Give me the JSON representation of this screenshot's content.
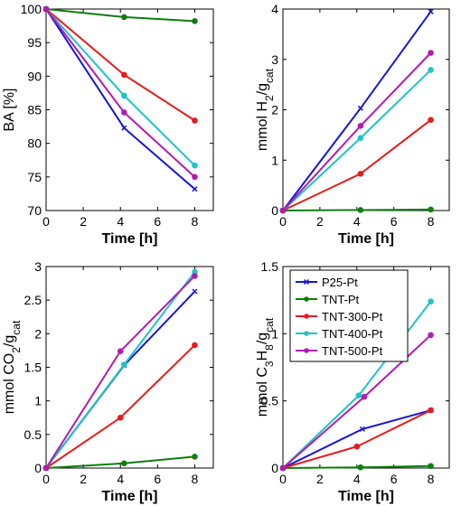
{
  "chart_data": [
    {
      "type": "line",
      "xlabel": "Time [h]",
      "ylabel": "BA [%]",
      "xlim": [
        0,
        9
      ],
      "ylim": [
        70,
        100
      ],
      "xticks": [
        "0",
        "2",
        "4",
        "6",
        "8"
      ],
      "yticks": [
        "70",
        "75",
        "80",
        "85",
        "90",
        "95",
        "100"
      ],
      "series": [
        {
          "name": "P25-Pt",
          "x": [
            0,
            4.2,
            8
          ],
          "y": [
            100,
            82.3,
            73.2
          ]
        },
        {
          "name": "TNT-Pt",
          "x": [
            0,
            4.2,
            8
          ],
          "y": [
            100,
            98.8,
            98.2
          ]
        },
        {
          "name": "TNT-300-Pt",
          "x": [
            0,
            4.2,
            8
          ],
          "y": [
            100,
            90.2,
            83.4
          ]
        },
        {
          "name": "TNT-400-Pt",
          "x": [
            0,
            4.2,
            8
          ],
          "y": [
            100,
            87.1,
            76.7
          ]
        },
        {
          "name": "TNT-500-Pt",
          "x": [
            0,
            4.2,
            8
          ],
          "y": [
            100,
            84.6,
            75
          ]
        }
      ]
    },
    {
      "type": "line",
      "xlabel": "Time [h]",
      "ylabel": "mmol H2/gcat",
      "ylabel_parts": [
        "mmol H",
        "2",
        "/g",
        "cat"
      ],
      "xlim": [
        0,
        9
      ],
      "ylim": [
        0,
        4
      ],
      "xticks": [
        "0",
        "2",
        "4",
        "6",
        "8"
      ],
      "yticks": [
        "0",
        "1",
        "2",
        "3",
        "4"
      ],
      "series": [
        {
          "name": "P25-Pt",
          "x": [
            0,
            4.2,
            8
          ],
          "y": [
            0,
            2.03,
            3.95
          ]
        },
        {
          "name": "TNT-Pt",
          "x": [
            0,
            4.2,
            8
          ],
          "y": [
            0,
            0.01,
            0.02
          ]
        },
        {
          "name": "TNT-300-Pt",
          "x": [
            0,
            4.2,
            8
          ],
          "y": [
            0,
            0.73,
            1.8
          ]
        },
        {
          "name": "TNT-400-Pt",
          "x": [
            0,
            4.2,
            8
          ],
          "y": [
            0,
            1.44,
            2.79
          ]
        },
        {
          "name": "TNT-500-Pt",
          "x": [
            0,
            4.2,
            8
          ],
          "y": [
            0,
            1.68,
            3.13
          ]
        }
      ]
    },
    {
      "type": "line",
      "xlabel": "Time [h]",
      "ylabel": "mmol CO2/gcat",
      "ylabel_parts": [
        "mmol CO",
        "2",
        "/g",
        "cat"
      ],
      "xlim": [
        0,
        9
      ],
      "ylim": [
        0,
        3
      ],
      "xticks": [
        "0",
        "2",
        "4",
        "6",
        "8"
      ],
      "yticks": [
        "0",
        "0.5",
        "1",
        "1.5",
        "2",
        "2.5",
        "3"
      ],
      "series": [
        {
          "name": "P25-Pt",
          "x": [
            0,
            4.2,
            8
          ],
          "y": [
            0,
            1.53,
            2.63
          ]
        },
        {
          "name": "TNT-Pt",
          "x": [
            0,
            4.2,
            8
          ],
          "y": [
            0,
            0.07,
            0.17
          ]
        },
        {
          "name": "TNT-300-Pt",
          "x": [
            0,
            4,
            8
          ],
          "y": [
            0,
            0.75,
            1.83
          ]
        },
        {
          "name": "TNT-400-Pt",
          "x": [
            0,
            4.2,
            8
          ],
          "y": [
            0,
            1.54,
            2.92
          ]
        },
        {
          "name": "TNT-500-Pt",
          "x": [
            0,
            4,
            8
          ],
          "y": [
            0,
            1.74,
            2.86
          ]
        }
      ]
    },
    {
      "type": "line",
      "xlabel": "Time [h]",
      "ylabel": "mmol C3H8/gcat",
      "ylabel_parts": [
        "mmol C",
        "3",
        "H",
        "8",
        "/g",
        "cat"
      ],
      "xlim": [
        0,
        9
      ],
      "ylim": [
        0,
        1.5
      ],
      "xticks": [
        "0",
        "2",
        "4",
        "6",
        "8"
      ],
      "yticks": [
        "0",
        "0.5",
        "1",
        "1.5"
      ],
      "legend": "top-left",
      "series": [
        {
          "name": "P25-Pt",
          "x": [
            0,
            4.3,
            8
          ],
          "y": [
            0,
            0.29,
            0.43
          ]
        },
        {
          "name": "TNT-Pt",
          "x": [
            0,
            4.2,
            8
          ],
          "y": [
            0,
            0.005,
            0.015
          ]
        },
        {
          "name": "TNT-300-Pt",
          "x": [
            0,
            4,
            8
          ],
          "y": [
            0,
            0.16,
            0.43
          ]
        },
        {
          "name": "TNT-400-Pt",
          "x": [
            0,
            4.1,
            8
          ],
          "y": [
            0,
            0.54,
            1.24
          ]
        },
        {
          "name": "TNT-500-Pt",
          "x": [
            0,
            4.4,
            8
          ],
          "y": [
            0,
            0.53,
            0.99
          ]
        }
      ]
    }
  ],
  "colors": {
    "P25-Pt": "#1515d8",
    "TNT-Pt": "#0f7d0f",
    "TNT-300-Pt": "#e81a1a",
    "TNT-400-Pt": "#1ec4c4",
    "TNT-500-Pt": "#b21ab2"
  }
}
